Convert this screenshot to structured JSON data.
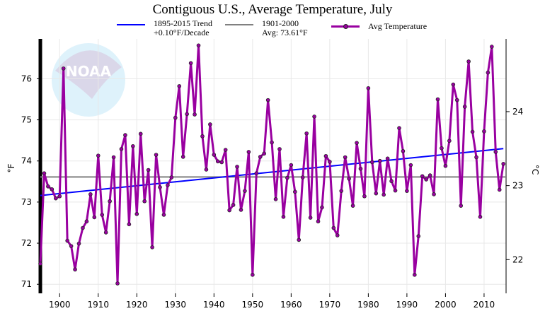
{
  "chart_data": {
    "type": "line",
    "title": "Contiguous U.S., Average Temperature, July",
    "ylabel": "°F",
    "ylabel_right": "°C",
    "xlim": [
      1895,
      2015.7
    ],
    "ylim": [
      70.78,
      76.97
    ],
    "x_ticks": [
      1900,
      1910,
      1920,
      1930,
      1940,
      1950,
      1960,
      1970,
      1980,
      1990,
      2000,
      2010
    ],
    "y_ticks": [
      71,
      72,
      73,
      74,
      75,
      76
    ],
    "y_right_ticks": [
      22,
      23,
      24
    ],
    "grid": true,
    "legend_placement": "top",
    "colors": {
      "avg": "#9900a0",
      "trend": "#0000ff",
      "baseline": "#808080"
    },
    "legend": {
      "trend_line1": "1895-2015 Trend",
      "trend_line2": "+0.10°F/Decade",
      "baseline_line1": "1901-2000",
      "baseline_line2": "Avg: 73.61°F",
      "avg": "Avg Temperature"
    },
    "baseline_value": 73.61,
    "trend": {
      "start": [
        1895,
        73.16
      ],
      "end": [
        2015,
        74.3
      ]
    },
    "series": [
      {
        "name": "Avg Temperature",
        "x_start": 1895,
        "values": [
          71.5,
          73.7,
          73.38,
          73.31,
          73.09,
          73.14,
          76.25,
          72.06,
          71.93,
          71.36,
          71.99,
          72.37,
          72.53,
          73.19,
          72.63,
          74.13,
          72.69,
          72.26,
          73.02,
          74.09,
          71.02,
          74.29,
          74.63,
          72.46,
          74.36,
          72.71,
          74.66,
          73.02,
          73.78,
          71.9,
          74.15,
          73.36,
          72.69,
          73.41,
          73.6,
          75.05,
          75.82,
          74.1,
          75.14,
          76.38,
          75.13,
          76.81,
          74.6,
          73.79,
          74.89,
          74.15,
          73.99,
          73.97,
          74.27,
          72.8,
          72.93,
          73.86,
          72.81,
          73.27,
          74.22,
          71.23,
          73.7,
          74.1,
          74.18,
          75.48,
          74.45,
          73.07,
          74.29,
          72.64,
          73.59,
          73.9,
          73.25,
          72.08,
          73.6,
          74.67,
          72.62,
          75.08,
          72.53,
          72.87,
          74.12,
          73.98,
          72.37,
          72.19,
          73.27,
          74.09,
          73.57,
          72.91,
          74.44,
          73.81,
          73.14,
          75.77,
          73.97,
          73.21,
          74.0,
          73.18,
          74.06,
          73.51,
          73.28,
          74.8,
          74.24,
          73.27,
          73.9,
          71.23,
          72.17,
          73.63,
          73.55,
          73.65,
          73.19,
          75.5,
          74.31,
          73.88,
          74.49,
          75.86,
          75.48,
          72.91,
          75.32,
          76.42,
          74.71,
          74.09,
          72.64,
          74.72,
          76.15,
          76.78,
          74.22,
          73.3,
          73.93
        ]
      }
    ],
    "watermark": "NOAA — National Oceanic and Atmospheric Administration, U.S. Department of Commerce"
  }
}
